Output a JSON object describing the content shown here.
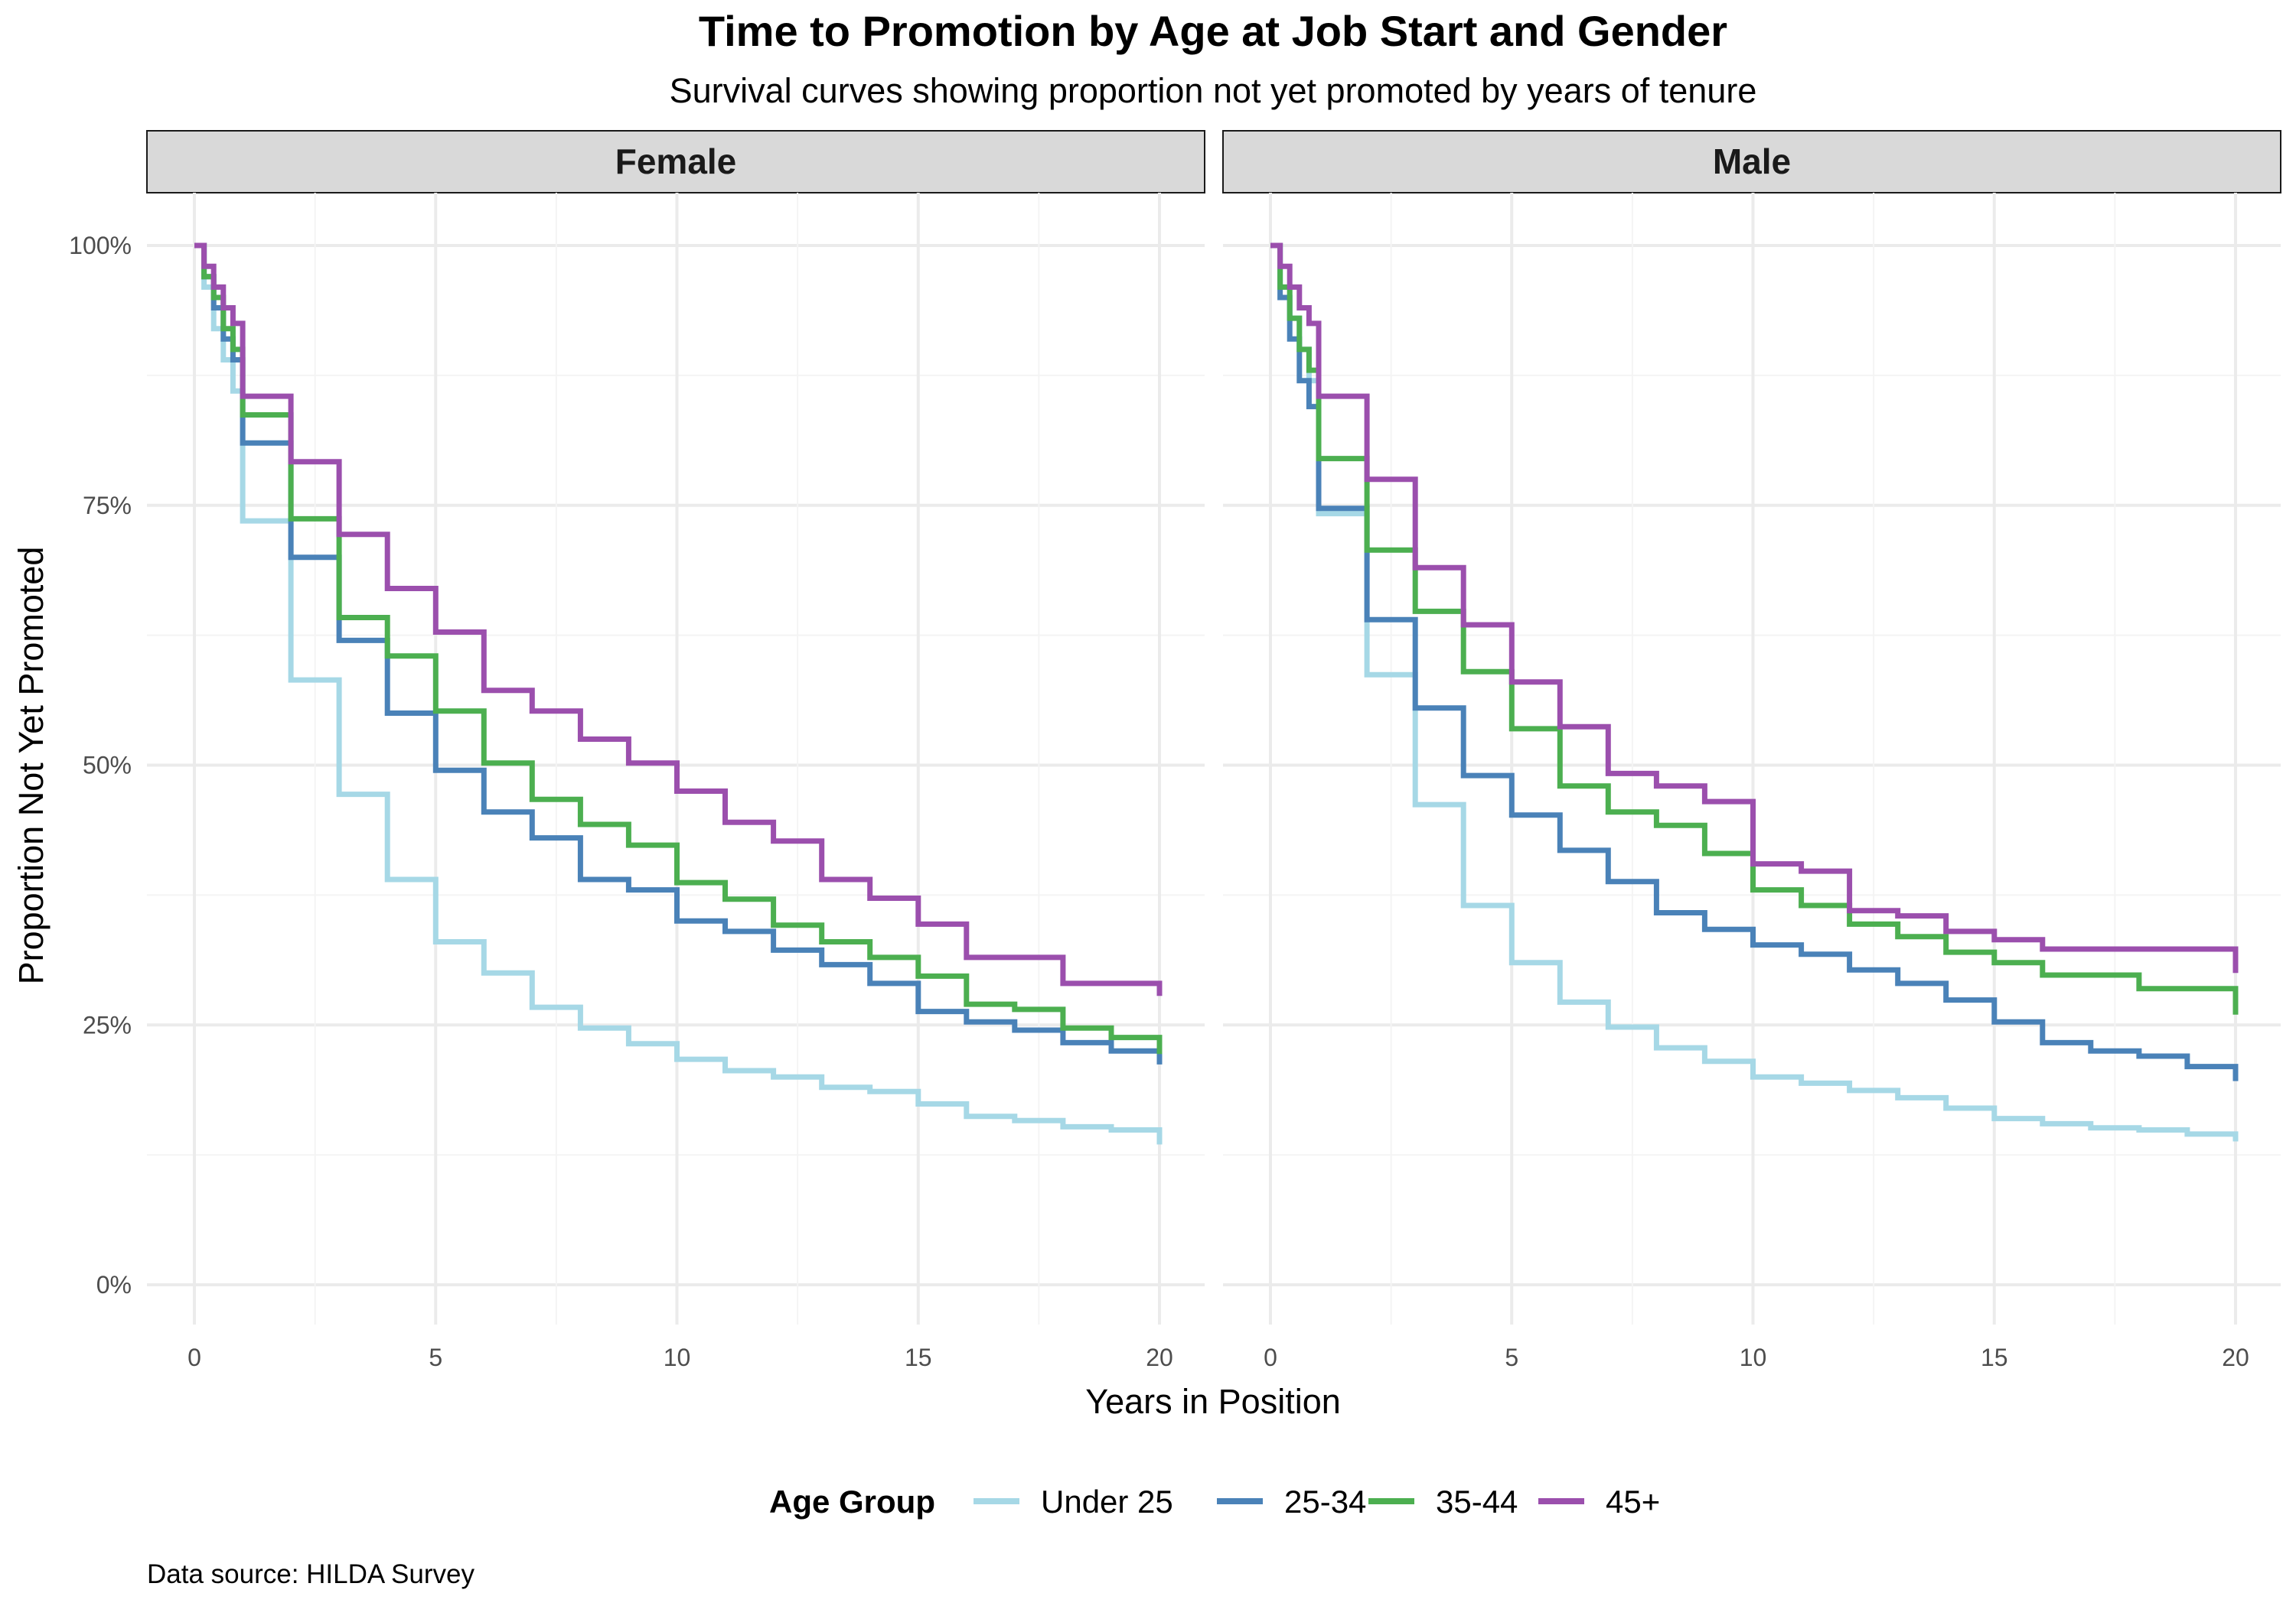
{
  "chart_data": {
    "type": "line",
    "step": true,
    "title": "Time to Promotion by Age at Job Start and Gender",
    "subtitle": "Survival curves showing proportion not yet promoted by years of tenure",
    "xlabel": "Years in Position",
    "ylabel": "Proportion Not Yet Promoted",
    "xlim": [
      0,
      20
    ],
    "ylim": [
      0,
      1
    ],
    "x_ticks": [
      "0",
      "5",
      "10",
      "15",
      "20"
    ],
    "y_ticks": [
      "0%",
      "25%",
      "50%",
      "75%",
      "100%"
    ],
    "grid": true,
    "legend": {
      "title": "Age Group",
      "position": "bottom"
    },
    "caption": "Data source: HILDA Survey",
    "series_styles": [
      {
        "name": "Under 25",
        "color": "#a6d8e6"
      },
      {
        "name": "25-34",
        "color": "#4a82b8"
      },
      {
        "name": "35-44",
        "color": "#4caf50"
      },
      {
        "name": "45+",
        "color": "#9b4fad"
      }
    ],
    "panels": [
      {
        "label": "Female",
        "series": [
          {
            "name": "Under 25",
            "x": [
              0,
              0.2,
              0.4,
              0.6,
              0.8,
              1,
              2,
              3,
              4,
              5,
              6,
              7,
              8,
              9,
              10,
              11,
              12,
              13,
              14,
              15,
              16,
              17,
              18,
              19,
              20
            ],
            "y": [
              1.0,
              0.96,
              0.92,
              0.89,
              0.86,
              0.735,
              0.582,
              0.472,
              0.39,
              0.33,
              0.3,
              0.267,
              0.247,
              0.232,
              0.217,
              0.206,
              0.2,
              0.19,
              0.186,
              0.174,
              0.162,
              0.158,
              0.152,
              0.149,
              0.135
            ]
          },
          {
            "name": "25-34",
            "x": [
              0,
              0.2,
              0.4,
              0.6,
              0.8,
              1,
              2,
              3,
              4,
              5,
              6,
              7,
              8,
              9,
              10,
              11,
              12,
              13,
              14,
              15,
              16,
              17,
              18,
              19,
              20
            ],
            "y": [
              1.0,
              0.97,
              0.94,
              0.91,
              0.89,
              0.81,
              0.7,
              0.62,
              0.55,
              0.495,
              0.455,
              0.43,
              0.39,
              0.38,
              0.35,
              0.34,
              0.322,
              0.308,
              0.29,
              0.263,
              0.253,
              0.245,
              0.233,
              0.225,
              0.212
            ]
          },
          {
            "name": "35-44",
            "x": [
              0,
              0.2,
              0.4,
              0.6,
              0.8,
              1,
              2,
              3,
              4,
              5,
              6,
              7,
              8,
              9,
              10,
              11,
              12,
              13,
              14,
              15,
              16,
              17,
              18,
              19,
              20
            ],
            "y": [
              1.0,
              0.97,
              0.95,
              0.92,
              0.9,
              0.837,
              0.737,
              0.642,
              0.605,
              0.552,
              0.502,
              0.467,
              0.443,
              0.423,
              0.387,
              0.371,
              0.346,
              0.33,
              0.315,
              0.297,
              0.27,
              0.265,
              0.247,
              0.238,
              0.222
            ]
          },
          {
            "name": "45+",
            "x": [
              0,
              0.2,
              0.4,
              0.6,
              0.8,
              1,
              2,
              3,
              4,
              5,
              6,
              7,
              8,
              9,
              10,
              11,
              12,
              13,
              14,
              15,
              16,
              17,
              18,
              19,
              20
            ],
            "y": [
              1.0,
              0.98,
              0.96,
              0.94,
              0.925,
              0.855,
              0.792,
              0.722,
              0.67,
              0.628,
              0.572,
              0.552,
              0.525,
              0.502,
              0.475,
              0.445,
              0.427,
              0.39,
              0.372,
              0.347,
              0.315,
              0.315,
              0.29,
              0.29,
              0.278
            ]
          }
        ]
      },
      {
        "label": "Male",
        "series": [
          {
            "name": "Under 25",
            "x": [
              0,
              0.2,
              0.4,
              0.6,
              0.8,
              1,
              2,
              3,
              4,
              5,
              6,
              7,
              8,
              9,
              10,
              11,
              12,
              13,
              14,
              15,
              16,
              17,
              18,
              19,
              20
            ],
            "y": [
              1.0,
              0.96,
              0.93,
              0.9,
              0.87,
              0.742,
              0.587,
              0.462,
              0.365,
              0.31,
              0.272,
              0.248,
              0.228,
              0.215,
              0.2,
              0.194,
              0.187,
              0.18,
              0.17,
              0.16,
              0.155,
              0.151,
              0.149,
              0.145,
              0.138
            ]
          },
          {
            "name": "25-34",
            "x": [
              0,
              0.2,
              0.4,
              0.6,
              0.8,
              1,
              2,
              3,
              4,
              5,
              6,
              7,
              8,
              9,
              10,
              11,
              12,
              13,
              14,
              15,
              16,
              17,
              18,
              19,
              20
            ],
            "y": [
              1.0,
              0.95,
              0.91,
              0.87,
              0.845,
              0.747,
              0.64,
              0.555,
              0.49,
              0.452,
              0.418,
              0.388,
              0.358,
              0.342,
              0.327,
              0.318,
              0.303,
              0.29,
              0.274,
              0.253,
              0.233,
              0.225,
              0.22,
              0.21,
              0.196
            ]
          },
          {
            "name": "35-44",
            "x": [
              0,
              0.2,
              0.4,
              0.6,
              0.8,
              1,
              2,
              3,
              4,
              5,
              6,
              7,
              8,
              9,
              10,
              11,
              12,
              13,
              14,
              15,
              16,
              17,
              18,
              19,
              20
            ],
            "y": [
              1.0,
              0.96,
              0.93,
              0.9,
              0.88,
              0.795,
              0.707,
              0.648,
              0.59,
              0.535,
              0.48,
              0.455,
              0.442,
              0.415,
              0.38,
              0.365,
              0.347,
              0.335,
              0.32,
              0.31,
              0.298,
              0.298,
              0.285,
              0.285,
              0.26
            ]
          },
          {
            "name": "45+",
            "x": [
              0,
              0.2,
              0.4,
              0.6,
              0.8,
              1,
              2,
              3,
              4,
              5,
              6,
              7,
              8,
              9,
              10,
              11,
              12,
              13,
              14,
              15,
              16,
              17,
              18,
              19,
              20
            ],
            "y": [
              1.0,
              0.98,
              0.96,
              0.94,
              0.925,
              0.855,
              0.775,
              0.69,
              0.635,
              0.58,
              0.537,
              0.492,
              0.48,
              0.465,
              0.405,
              0.398,
              0.36,
              0.355,
              0.34,
              0.332,
              0.323,
              0.323,
              0.323,
              0.323,
              0.3
            ]
          }
        ]
      }
    ]
  }
}
